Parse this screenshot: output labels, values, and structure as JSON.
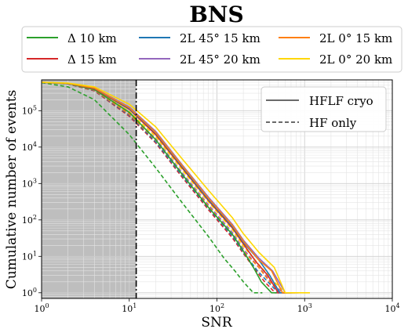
{
  "chart_data": {
    "type": "line",
    "title": "BNS",
    "xlabel": "SNR",
    "ylabel": "Cumulative number of events",
    "xscale": "log",
    "yscale": "log",
    "xlim": [
      1,
      10000
    ],
    "ylim": [
      0.7,
      700000
    ],
    "x_ticks": [
      "10^0",
      "10^1",
      "10^2",
      "10^3",
      "10^4"
    ],
    "y_ticks": [
      "10^0",
      "10^1",
      "10^2",
      "10^3",
      "10^4",
      "10^5"
    ],
    "grid": true,
    "shaded_region": {
      "x_from": 1,
      "x_to": 12,
      "color": "#bebebe"
    },
    "threshold_line": {
      "x": 12,
      "style": "dash-dot",
      "color": "#000000"
    },
    "legend_top": {
      "placement": "above plot",
      "entries": [
        {
          "label": "Δ 10 km",
          "color": "#2ca02c"
        },
        {
          "label": "Δ 15 km",
          "color": "#d62728"
        },
        {
          "label": "2L 45° 15 km",
          "color": "#1f77b4"
        },
        {
          "label": "2L 45° 20 km",
          "color": "#9467bd"
        },
        {
          "label": "2L 0° 15 km",
          "color": "#ff7f0e"
        },
        {
          "label": "2L 0° 20 km",
          "color": "#ffd700"
        }
      ]
    },
    "legend_style": {
      "placement": "top-right",
      "entries": [
        {
          "label": "HFLF cryo",
          "style": "solid"
        },
        {
          "label": "HF only",
          "style": "dashed"
        }
      ]
    },
    "series": [
      {
        "name": "Δ 10 km",
        "style": "solid",
        "color": "#2ca02c",
        "points": [
          [
            1,
            600000
          ],
          [
            2,
            550000
          ],
          [
            4,
            380000
          ],
          [
            10,
            90000
          ],
          [
            20,
            16000
          ],
          [
            40,
            1800
          ],
          [
            80,
            220
          ],
          [
            150,
            40
          ],
          [
            200,
            14
          ],
          [
            260,
            5
          ],
          [
            320,
            2
          ],
          [
            420,
            1
          ],
          [
            480,
            1
          ]
        ]
      },
      {
        "name": "Δ 15 km",
        "style": "solid",
        "color": "#d62728",
        "points": [
          [
            1,
            600000
          ],
          [
            2,
            560000
          ],
          [
            4,
            400000
          ],
          [
            10,
            110000
          ],
          [
            20,
            22000
          ],
          [
            40,
            2700
          ],
          [
            80,
            340
          ],
          [
            150,
            60
          ],
          [
            200,
            22
          ],
          [
            280,
            7
          ],
          [
            380,
            3
          ],
          [
            500,
            1
          ],
          [
            680,
            1
          ]
        ]
      },
      {
        "name": "2L 45° 15 km",
        "style": "solid",
        "color": "#1f77b4",
        "points": [
          [
            1,
            600000
          ],
          [
            2,
            560000
          ],
          [
            4,
            410000
          ],
          [
            10,
            115000
          ],
          [
            20,
            24000
          ],
          [
            40,
            2900
          ],
          [
            80,
            360
          ],
          [
            150,
            65
          ],
          [
            200,
            24
          ],
          [
            300,
            8
          ],
          [
            400,
            3
          ],
          [
            520,
            1
          ],
          [
            720,
            1
          ]
        ]
      },
      {
        "name": "2L 45° 20 km",
        "style": "solid",
        "color": "#9467bd",
        "points": [
          [
            1,
            600000
          ],
          [
            2,
            560000
          ],
          [
            4,
            420000
          ],
          [
            10,
            125000
          ],
          [
            20,
            27000
          ],
          [
            40,
            3300
          ],
          [
            80,
            420
          ],
          [
            150,
            75
          ],
          [
            200,
            28
          ],
          [
            300,
            9
          ],
          [
            430,
            4
          ],
          [
            600,
            1
          ],
          [
            850,
            1
          ]
        ]
      },
      {
        "name": "2L 0° 15 km",
        "style": "solid",
        "color": "#ff7f0e",
        "points": [
          [
            1,
            600000
          ],
          [
            2,
            560000
          ],
          [
            4,
            415000
          ],
          [
            10,
            120000
          ],
          [
            20,
            25000
          ],
          [
            40,
            3100
          ],
          [
            80,
            390
          ],
          [
            150,
            70
          ],
          [
            200,
            26
          ],
          [
            300,
            8
          ],
          [
            420,
            4
          ],
          [
            560,
            1
          ],
          [
            780,
            1
          ]
        ]
      },
      {
        "name": "2L 0° 20 km",
        "style": "solid",
        "color": "#ffd700",
        "points": [
          [
            1,
            600000
          ],
          [
            2,
            570000
          ],
          [
            4,
            450000
          ],
          [
            10,
            150000
          ],
          [
            20,
            36000
          ],
          [
            40,
            4800
          ],
          [
            80,
            650
          ],
          [
            150,
            115
          ],
          [
            200,
            42
          ],
          [
            300,
            13
          ],
          [
            450,
            5
          ],
          [
            600,
            1
          ],
          [
            1150,
            1
          ]
        ]
      },
      {
        "name": "Δ 10 km",
        "style": "dashed",
        "color": "#2ca02c",
        "points": [
          [
            1,
            590000
          ],
          [
            2,
            450000
          ],
          [
            4,
            200000
          ],
          [
            10,
            22000
          ],
          [
            20,
            2700
          ],
          [
            40,
            300
          ],
          [
            80,
            35
          ],
          [
            120,
            9
          ],
          [
            160,
            4
          ],
          [
            200,
            2
          ],
          [
            260,
            1
          ],
          [
            330,
            1
          ]
        ]
      },
      {
        "name": "Δ 15 km",
        "style": "dashed",
        "color": "#d62728",
        "points": [
          [
            1,
            600000
          ],
          [
            2,
            540000
          ],
          [
            4,
            350000
          ],
          [
            10,
            70000
          ],
          [
            20,
            13000
          ],
          [
            40,
            1500
          ],
          [
            80,
            190
          ],
          [
            150,
            32
          ],
          [
            200,
            12
          ],
          [
            280,
            4
          ],
          [
            350,
            2
          ],
          [
            460,
            1
          ],
          [
            520,
            1
          ]
        ]
      },
      {
        "name": "2L 45° 15 km",
        "style": "dashed",
        "color": "#1f77b4",
        "points": [
          [
            1,
            600000
          ],
          [
            2,
            545000
          ],
          [
            4,
            360000
          ],
          [
            10,
            75000
          ],
          [
            20,
            14000
          ],
          [
            40,
            1650
          ],
          [
            80,
            210
          ],
          [
            150,
            36
          ],
          [
            200,
            13
          ],
          [
            290,
            4
          ],
          [
            380,
            2
          ],
          [
            500,
            1
          ],
          [
            560,
            1
          ]
        ]
      },
      {
        "name": "2L 45° 20 km",
        "style": "dashed",
        "color": "#9467bd",
        "points": [
          [
            1,
            600000
          ],
          [
            2,
            550000
          ],
          [
            4,
            380000
          ],
          [
            10,
            85000
          ],
          [
            20,
            17000
          ],
          [
            40,
            2000
          ],
          [
            80,
            260
          ],
          [
            150,
            45
          ],
          [
            200,
            16
          ],
          [
            300,
            5
          ],
          [
            420,
            2
          ],
          [
            560,
            1
          ],
          [
            650,
            1
          ]
        ]
      },
      {
        "name": "2L 0° 15 km",
        "style": "dashed",
        "color": "#ff7f0e",
        "points": [
          [
            1,
            600000
          ],
          [
            2,
            548000
          ],
          [
            4,
            370000
          ],
          [
            10,
            80000
          ],
          [
            20,
            15500
          ],
          [
            40,
            1800
          ],
          [
            80,
            235
          ],
          [
            150,
            40
          ],
          [
            200,
            14
          ],
          [
            300,
            5
          ],
          [
            400,
            2
          ],
          [
            530,
            1
          ],
          [
            620,
            1
          ]
        ]
      },
      {
        "name": "2L 0° 20 km",
        "style": "dashed",
        "color": "#ffd700",
        "points": [
          [
            1,
            600000
          ],
          [
            2,
            555000
          ],
          [
            4,
            395000
          ],
          [
            10,
            95000
          ],
          [
            20,
            19500
          ],
          [
            40,
            2400
          ],
          [
            80,
            310
          ],
          [
            150,
            54
          ],
          [
            200,
            19
          ],
          [
            300,
            6
          ],
          [
            450,
            2
          ],
          [
            600,
            1
          ],
          [
            700,
            1
          ]
        ]
      }
    ]
  }
}
